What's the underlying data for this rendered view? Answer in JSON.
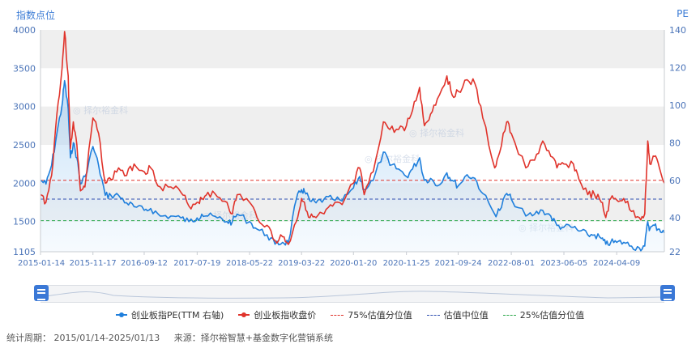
{
  "labels": {
    "y_left": "指数点位",
    "y_right": "PE"
  },
  "legend": {
    "pe": "创业板指PE(TTM 右轴)",
    "close": "创业板指收盘价",
    "p75": "75%估值分位值",
    "median": "估值中位值",
    "p25": "25%估值分位值"
  },
  "footer": {
    "period": "统计周期： 2015/01/14-2025/01/13",
    "source": "来源：择尔裕智慧+基金数字化营销系统"
  },
  "watermark": "择尔裕金科",
  "colors": {
    "pe": "#1f7fdc",
    "close": "#e0332b",
    "p75": "#e0332b",
    "median": "#2f4fb0",
    "p25": "#2aa84a",
    "accent": "#3a7bd5"
  },
  "chart_data": {
    "type": "line",
    "x_ticks": [
      "2015-01-14",
      "2015-11-17",
      "2016-09-12",
      "2017-07-19",
      "2018-05-22",
      "2019-03-22",
      "2020-01-20",
      "2020-11-25",
      "2021-09-24",
      "2022-08-01",
      "2023-06-05",
      "2024-04-09"
    ],
    "x_range": [
      "2015-01-14",
      "2025-01-13"
    ],
    "y_left": {
      "ticks": [
        "1105",
        "1500",
        "2000",
        "2500",
        "3000",
        "3500",
        "4000"
      ],
      "range": [
        1105,
        4000
      ]
    },
    "y_right": {
      "ticks": [
        "22",
        "40",
        "60",
        "80",
        "100",
        "120",
        "140"
      ],
      "range": [
        22,
        140
      ]
    },
    "reference_lines_pe": {
      "p75": 60,
      "median": 50,
      "p25": 38.5
    },
    "series": [
      {
        "name": "创业板指收盘价",
        "axis": "left",
        "points": [
          [
            "2015-01-14",
            1850
          ],
          [
            "2015-02-15",
            1750
          ],
          [
            "2015-03-20",
            2100
          ],
          [
            "2015-04-20",
            2900
          ],
          [
            "2015-05-20",
            3500
          ],
          [
            "2015-06-04",
            3980
          ],
          [
            "2015-06-25",
            3400
          ],
          [
            "2015-07-08",
            2450
          ],
          [
            "2015-07-25",
            2800
          ],
          [
            "2015-08-15",
            2500
          ],
          [
            "2015-09-05",
            1900
          ],
          [
            "2015-10-01",
            1950
          ],
          [
            "2015-11-17",
            2850
          ],
          [
            "2015-12-20",
            2650
          ],
          [
            "2016-01-28",
            2000
          ],
          [
            "2016-03-01",
            2050
          ],
          [
            "2016-04-15",
            2200
          ],
          [
            "2016-06-01",
            2100
          ],
          [
            "2016-07-15",
            2250
          ],
          [
            "2016-09-12",
            2150
          ],
          [
            "2016-10-20",
            2200
          ],
          [
            "2016-12-15",
            1950
          ],
          [
            "2017-02-15",
            1950
          ],
          [
            "2017-04-15",
            1880
          ],
          [
            "2017-06-01",
            1700
          ],
          [
            "2017-07-19",
            1750
          ],
          [
            "2017-08-15",
            1800
          ],
          [
            "2017-09-20",
            1880
          ],
          [
            "2017-11-15",
            1820
          ],
          [
            "2018-01-10",
            1750
          ],
          [
            "2018-02-10",
            1600
          ],
          [
            "2018-03-10",
            1850
          ],
          [
            "2018-05-22",
            1750
          ],
          [
            "2018-07-05",
            1550
          ],
          [
            "2018-09-01",
            1450
          ],
          [
            "2018-10-18",
            1250
          ],
          [
            "2018-12-01",
            1300
          ],
          [
            "2019-01-04",
            1200
          ],
          [
            "2019-02-20",
            1500
          ],
          [
            "2019-03-22",
            1800
          ],
          [
            "2019-04-08",
            1750
          ],
          [
            "2019-05-10",
            1550
          ],
          [
            "2019-06-15",
            1550
          ],
          [
            "2019-08-01",
            1600
          ],
          [
            "2019-09-20",
            1700
          ],
          [
            "2019-11-15",
            1720
          ],
          [
            "2020-01-20",
            2000
          ],
          [
            "2020-02-25",
            2200
          ],
          [
            "2020-03-23",
            1850
          ],
          [
            "2020-05-15",
            2150
          ],
          [
            "2020-07-13",
            2800
          ],
          [
            "2020-08-20",
            2700
          ],
          [
            "2020-10-10",
            2700
          ],
          [
            "2020-11-25",
            2750
          ],
          [
            "2020-12-31",
            2950
          ],
          [
            "2021-02-10",
            3250
          ],
          [
            "2021-03-10",
            2750
          ],
          [
            "2021-04-15",
            2900
          ],
          [
            "2021-05-25",
            3100
          ],
          [
            "2021-07-20",
            3400
          ],
          [
            "2021-08-20",
            3150
          ],
          [
            "2021-09-24",
            3200
          ],
          [
            "2021-11-15",
            3350
          ],
          [
            "2021-12-31",
            3300
          ],
          [
            "2022-02-15",
            2850
          ],
          [
            "2022-04-26",
            2200
          ],
          [
            "2022-05-25",
            2400
          ],
          [
            "2022-07-05",
            2800
          ],
          [
            "2022-08-01",
            2650
          ],
          [
            "2022-10-25",
            2200
          ],
          [
            "2022-12-15",
            2300
          ],
          [
            "2023-02-01",
            2550
          ],
          [
            "2023-03-20",
            2350
          ],
          [
            "2023-04-25",
            2200
          ],
          [
            "2023-06-05",
            2250
          ],
          [
            "2023-07-31",
            2250
          ],
          [
            "2023-09-01",
            2050
          ],
          [
            "2023-10-23",
            1850
          ],
          [
            "2023-12-01",
            1850
          ],
          [
            "2024-01-10",
            1750
          ],
          [
            "2024-02-05",
            1550
          ],
          [
            "2024-03-05",
            1800
          ],
          [
            "2024-04-09",
            1780
          ],
          [
            "2024-05-20",
            1800
          ],
          [
            "2024-07-05",
            1630
          ],
          [
            "2024-08-20",
            1550
          ],
          [
            "2024-09-20",
            1600
          ],
          [
            "2024-10-08",
            2550
          ],
          [
            "2024-10-20",
            2250
          ],
          [
            "2024-11-15",
            2350
          ],
          [
            "2024-12-15",
            2200
          ],
          [
            "2025-01-13",
            2000
          ]
        ]
      },
      {
        "name": "创业板指PE(TTM 右轴)",
        "axis": "right",
        "points": [
          [
            "2015-01-14",
            60
          ],
          [
            "2015-02-15",
            58
          ],
          [
            "2015-03-20",
            68
          ],
          [
            "2015-04-20",
            85
          ],
          [
            "2015-05-20",
            100
          ],
          [
            "2015-06-04",
            113
          ],
          [
            "2015-06-25",
            98
          ],
          [
            "2015-07-08",
            72
          ],
          [
            "2015-07-25",
            80
          ],
          [
            "2015-08-15",
            72
          ],
          [
            "2015-09-05",
            58
          ],
          [
            "2015-10-01",
            62
          ],
          [
            "2015-11-17",
            78
          ],
          [
            "2015-12-20",
            68
          ],
          [
            "2016-01-28",
            52
          ],
          [
            "2016-03-01",
            52
          ],
          [
            "2016-04-15",
            52
          ],
          [
            "2016-06-01",
            48
          ],
          [
            "2016-07-15",
            46
          ],
          [
            "2016-09-12",
            44
          ],
          [
            "2016-10-20",
            45
          ],
          [
            "2016-12-15",
            41
          ],
          [
            "2017-02-15",
            41
          ],
          [
            "2017-04-15",
            40
          ],
          [
            "2017-06-01",
            38
          ],
          [
            "2017-07-19",
            40
          ],
          [
            "2017-08-15",
            42
          ],
          [
            "2017-09-20",
            41
          ],
          [
            "2017-11-15",
            40
          ],
          [
            "2018-01-10",
            38
          ],
          [
            "2018-02-10",
            38
          ],
          [
            "2018-03-10",
            42
          ],
          [
            "2018-05-22",
            38
          ],
          [
            "2018-07-05",
            34
          ],
          [
            "2018-09-01",
            31
          ],
          [
            "2018-10-18",
            26
          ],
          [
            "2018-12-01",
            27
          ],
          [
            "2019-01-04",
            27
          ],
          [
            "2019-02-20",
            50
          ],
          [
            "2019-03-22",
            55
          ],
          [
            "2019-04-08",
            54
          ],
          [
            "2019-05-10",
            49
          ],
          [
            "2019-06-15",
            48
          ],
          [
            "2019-08-01",
            50
          ],
          [
            "2019-09-20",
            50
          ],
          [
            "2019-11-15",
            49
          ],
          [
            "2020-01-20",
            56
          ],
          [
            "2020-02-25",
            62
          ],
          [
            "2020-03-23",
            55
          ],
          [
            "2020-05-15",
            60
          ],
          [
            "2020-07-13",
            75
          ],
          [
            "2020-08-20",
            68
          ],
          [
            "2020-10-10",
            66
          ],
          [
            "2020-11-25",
            62
          ],
          [
            "2020-12-31",
            66
          ],
          [
            "2021-02-10",
            72
          ],
          [
            "2021-03-10",
            60
          ],
          [
            "2021-04-15",
            61
          ],
          [
            "2021-05-25",
            57
          ],
          [
            "2021-07-20",
            64
          ],
          [
            "2021-08-20",
            60
          ],
          [
            "2021-09-24",
            57
          ],
          [
            "2021-11-15",
            63
          ],
          [
            "2021-12-31",
            61
          ],
          [
            "2022-02-15",
            53
          ],
          [
            "2022-04-26",
            42
          ],
          [
            "2022-05-25",
            44
          ],
          [
            "2022-07-05",
            53
          ],
          [
            "2022-08-01",
            50
          ],
          [
            "2022-10-25",
            41
          ],
          [
            "2022-12-15",
            42
          ],
          [
            "2023-02-01",
            44
          ],
          [
            "2023-03-20",
            41
          ],
          [
            "2023-04-25",
            36
          ],
          [
            "2023-06-05",
            35
          ],
          [
            "2023-07-31",
            35
          ],
          [
            "2023-09-01",
            33
          ],
          [
            "2023-10-23",
            31
          ],
          [
            "2023-12-01",
            31
          ],
          [
            "2024-01-10",
            29
          ],
          [
            "2024-02-05",
            26
          ],
          [
            "2024-03-05",
            27
          ],
          [
            "2024-04-09",
            27
          ],
          [
            "2024-05-20",
            27
          ],
          [
            "2024-07-05",
            25
          ],
          [
            "2024-08-20",
            24
          ],
          [
            "2024-09-20",
            25
          ],
          [
            "2024-10-08",
            38
          ],
          [
            "2024-10-20",
            34
          ],
          [
            "2024-11-15",
            36
          ],
          [
            "2024-12-15",
            34
          ],
          [
            "2025-01-13",
            32
          ]
        ]
      }
    ]
  }
}
